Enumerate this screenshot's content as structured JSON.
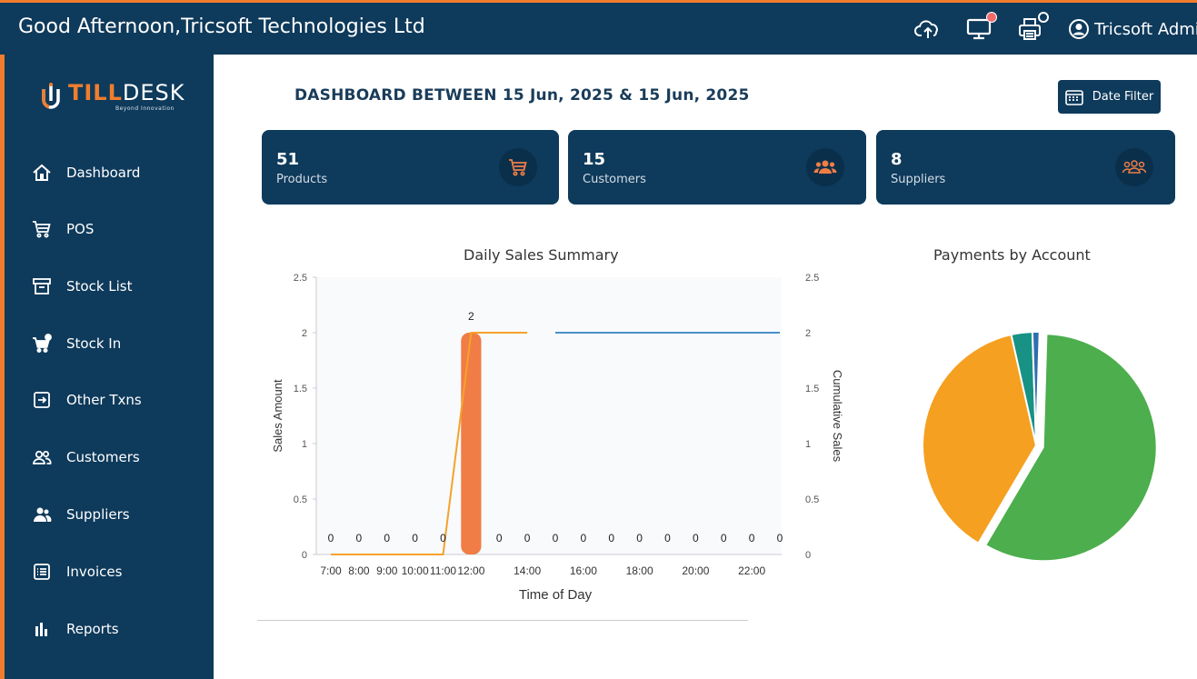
{
  "header": {
    "greeting": "Good Afternoon,Tricsoft Technologies Ltd",
    "user_name": "Tricsoft Admi",
    "icons": [
      "cloud-upload-icon",
      "monitor-icon",
      "printer-icon",
      "user-circle-icon"
    ]
  },
  "brand": {
    "name_part1": "TILL",
    "name_part2": "DESK",
    "tagline": "Beyond Innovation",
    "accent": "#f07d2e",
    "primary": "#0e3a5b"
  },
  "sidebar": {
    "items": [
      {
        "label": "Dashboard",
        "icon": "home-icon"
      },
      {
        "label": "POS",
        "icon": "cart-icon"
      },
      {
        "label": "Stock List",
        "icon": "archive-icon"
      },
      {
        "label": "Stock In",
        "icon": "cart-plus-icon"
      },
      {
        "label": "Other Txns",
        "icon": "arrow-in-box-icon"
      },
      {
        "label": "Customers",
        "icon": "users-icon"
      },
      {
        "label": "Suppliers",
        "icon": "user-group-icon"
      },
      {
        "label": "Invoices",
        "icon": "list-icon"
      },
      {
        "label": "Reports",
        "icon": "bar-chart-icon"
      }
    ]
  },
  "main": {
    "title": "DASHBOARD BETWEEN 15 Jun, 2025 & 15 Jun, 2025",
    "filter_label": "Date Filter",
    "cards": [
      {
        "value": "51",
        "label": "Products",
        "icon": "cart-icon"
      },
      {
        "value": "15",
        "label": "Customers",
        "icon": "users-icon"
      },
      {
        "value": "8",
        "label": "Suppliers",
        "icon": "user-group-icon"
      }
    ]
  },
  "chart_data": [
    {
      "type": "bar",
      "title": "Daily Sales Summary",
      "xlabel": "Time of Day",
      "ylabel": "Sales Amount",
      "y2label": "Cumulative Sales",
      "ylim": [
        0,
        2.5
      ],
      "y2lim": [
        0,
        2.5
      ],
      "y_ticks": [
        "0",
        "0.5",
        "1",
        "1.5",
        "2",
        "2.5"
      ],
      "x_tick_labels": [
        "7:00",
        "8:00",
        "9:00",
        "10:00",
        "11:00",
        "12:00",
        "14:00",
        "16:00",
        "18:00",
        "20:00",
        "22:00"
      ],
      "categories": [
        "7:00",
        "8:00",
        "9:00",
        "10:00",
        "11:00",
        "12:00",
        "13:00",
        "14:00",
        "15:00",
        "16:00",
        "17:00",
        "18:00",
        "19:00",
        "20:00",
        "21:00",
        "22:00",
        "23:00"
      ],
      "series": [
        {
          "name": "Sales Amount",
          "values": [
            0,
            0,
            0,
            0,
            0,
            2,
            0,
            0,
            0,
            0,
            0,
            0,
            0,
            0,
            0,
            0,
            0
          ],
          "color": "#f07d45"
        },
        {
          "name": "Cumulative Sales",
          "values": [
            0,
            0,
            0,
            0,
            0,
            2,
            2,
            2,
            2,
            2,
            2,
            2,
            2,
            2,
            2,
            2,
            2
          ],
          "colors": [
            "#f5a22a",
            "#4a90c8"
          ]
        }
      ],
      "data_labels": [
        "0",
        "0",
        "0",
        "0",
        "0",
        "2",
        "0",
        "0",
        "0",
        "0",
        "0",
        "0",
        "0",
        "0",
        "0",
        "0",
        "0"
      ],
      "grid": false
    },
    {
      "type": "pie",
      "title": "Payments by Account",
      "slices": [
        {
          "label": "",
          "value": 58,
          "color": "#4cae4c"
        },
        {
          "label": "",
          "value": 38,
          "color": "#f5a020"
        },
        {
          "label": "",
          "value": 3,
          "color": "#179284"
        },
        {
          "label": "",
          "value": 1,
          "color": "#2f6db0"
        }
      ]
    }
  ]
}
